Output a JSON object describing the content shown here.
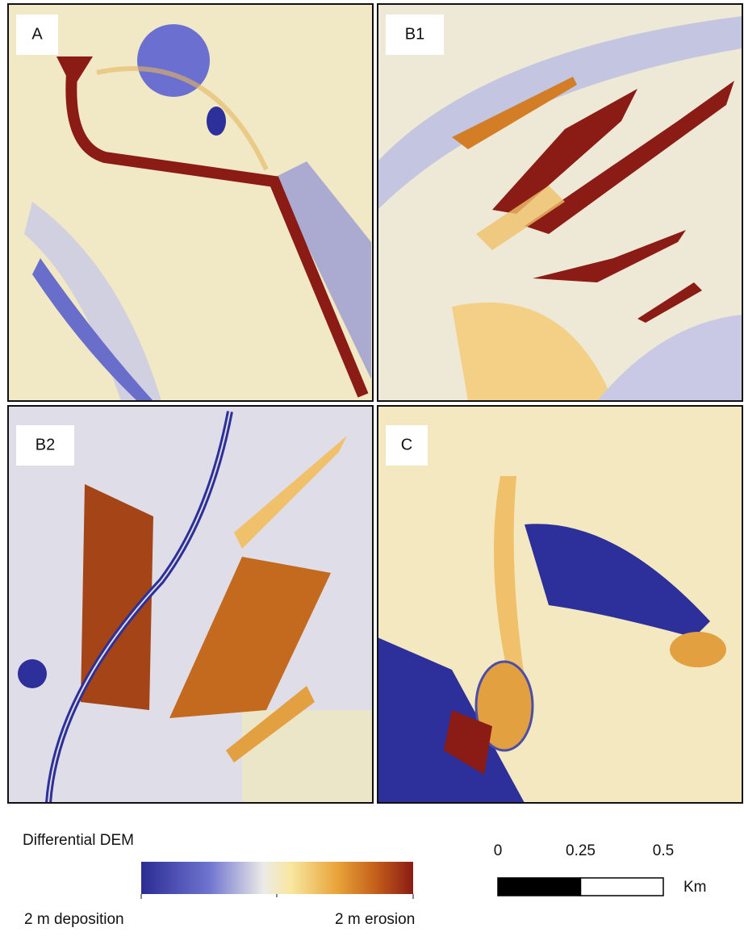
{
  "panels": [
    {
      "label": "A"
    },
    {
      "label": "B1"
    },
    {
      "label": "B2"
    },
    {
      "label": "C"
    }
  ],
  "legend": {
    "title": "Differential DEM",
    "min_label": "2 m deposition",
    "max_label": "2 m erosion"
  },
  "scale_bar": {
    "ticks": [
      0,
      0.25,
      0.5
    ],
    "unit": "Km"
  }
}
